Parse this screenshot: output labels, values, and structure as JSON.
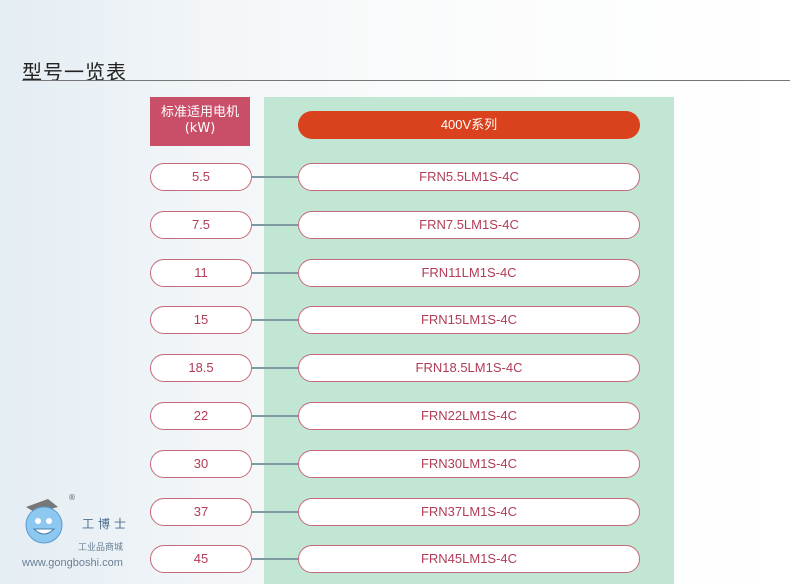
{
  "title": "型号一览表",
  "header": {
    "line1": "标准适用电机",
    "line2": "(kW)"
  },
  "series_label": "400V系列",
  "rows": [
    {
      "kw": "5.5",
      "model": "FRN5.5LM1S-4C"
    },
    {
      "kw": "7.5",
      "model": "FRN7.5LM1S-4C"
    },
    {
      "kw": "11",
      "model": "FRN11LM1S-4C"
    },
    {
      "kw": "15",
      "model": "FRN15LM1S-4C"
    },
    {
      "kw": "18.5",
      "model": "FRN18.5LM1S-4C"
    },
    {
      "kw": "22",
      "model": "FRN22LM1S-4C"
    },
    {
      "kw": "30",
      "model": "FRN30LM1S-4C"
    },
    {
      "kw": "37",
      "model": "FRN37LM1S-4C"
    },
    {
      "kw": "45",
      "model": "FRN45LM1S-4C"
    }
  ],
  "watermark": {
    "brand": "工博士",
    "sub": "工业品商城",
    "url": "www.gongboshi.com",
    "reg": "®"
  },
  "colors": {
    "accent": "#d9421c",
    "header": "#c94f68",
    "panel": "#c2e6d4",
    "border": "#c46a7a"
  }
}
